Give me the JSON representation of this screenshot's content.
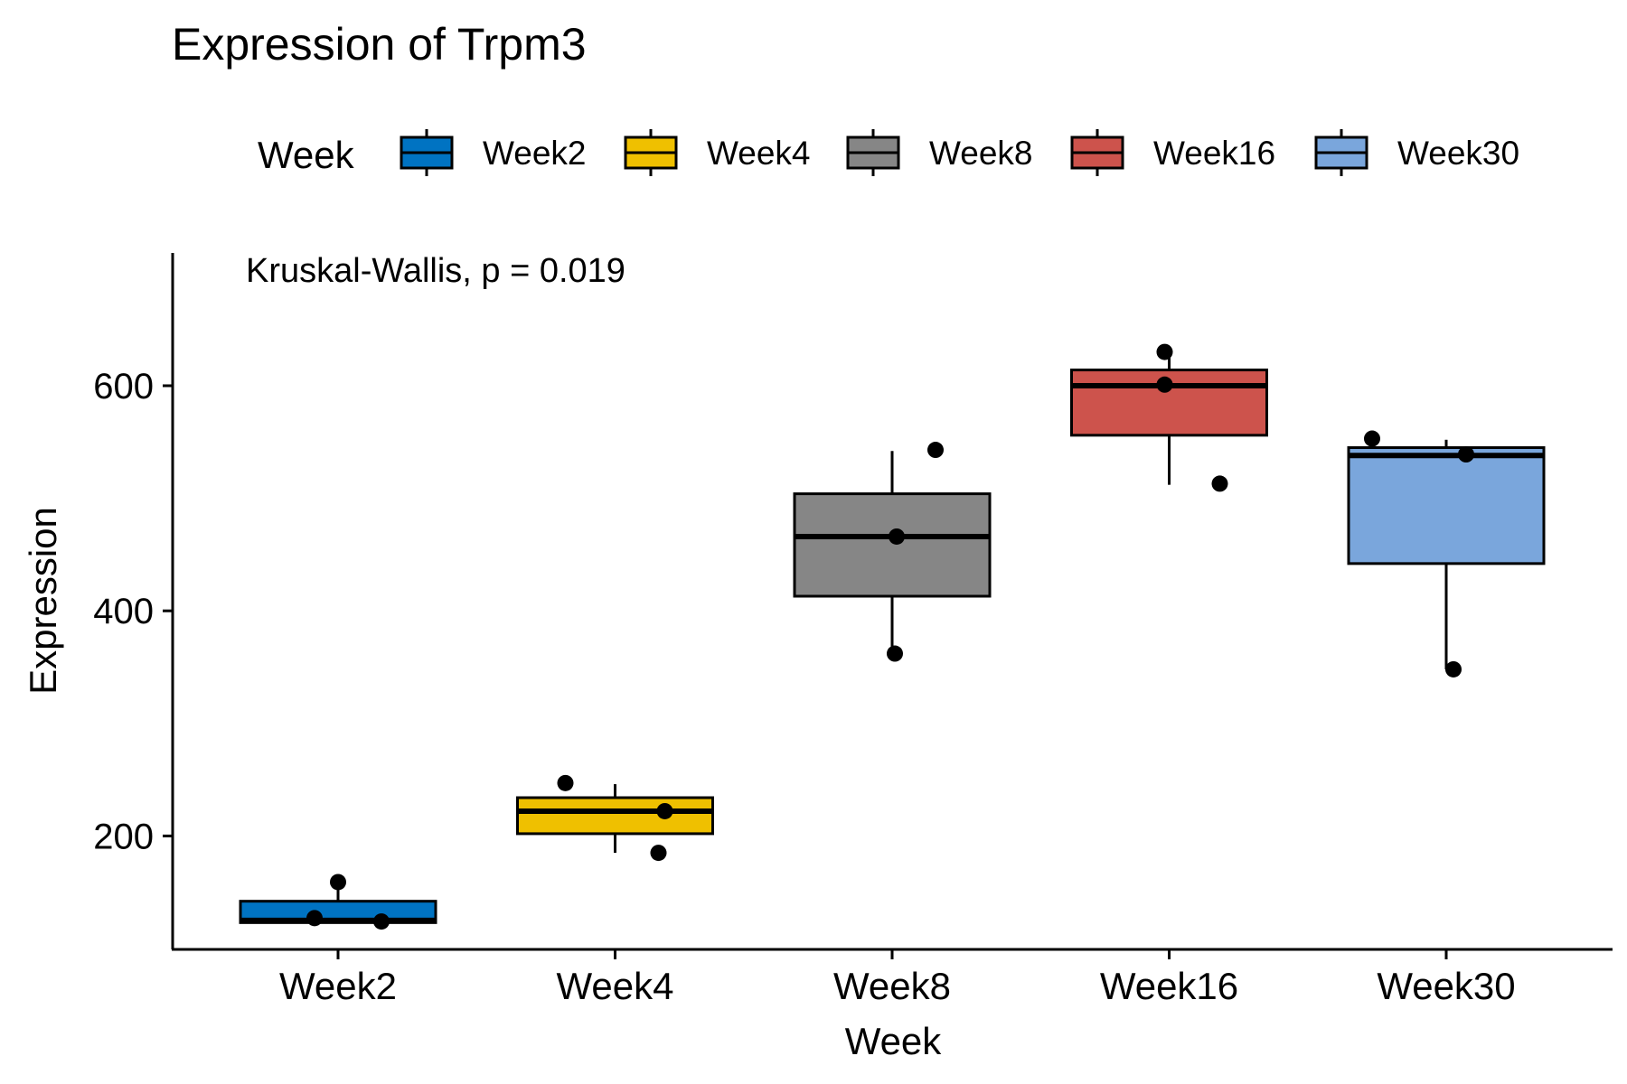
{
  "chart_data": {
    "type": "boxplot",
    "title": "Expression of Trpm3",
    "xlabel": "Week",
    "ylabel": "Expression",
    "annotation": "Kruskal-Wallis, p = 0.019",
    "categories": [
      "Week2",
      "Week4",
      "Week8",
      "Week16",
      "Week30"
    ],
    "ylim": [
      100,
      715
    ],
    "yticks": [
      200,
      400,
      600
    ],
    "grid": false,
    "legend": {
      "title": "Week",
      "position": "top",
      "entries": [
        "Week2",
        "Week4",
        "Week8",
        "Week16",
        "Week30"
      ]
    },
    "series": [
      {
        "name": "Week2",
        "color": "#0073C2",
        "min": 123,
        "q1": 123,
        "median": 125,
        "q3": 142,
        "max": 157,
        "points": [
          127,
          124,
          159
        ]
      },
      {
        "name": "Week4",
        "color": "#EFC000",
        "min": 185,
        "q1": 202,
        "median": 222,
        "q3": 234,
        "max": 246,
        "points": [
          247,
          222,
          185
        ]
      },
      {
        "name": "Week8",
        "color": "#868686",
        "min": 362,
        "q1": 413,
        "median": 466,
        "q3": 504,
        "max": 542,
        "points": [
          543,
          466,
          362
        ]
      },
      {
        "name": "Week16",
        "color": "#CD534C",
        "min": 512,
        "q1": 556,
        "median": 600,
        "q3": 614,
        "max": 629,
        "points": [
          630,
          601,
          513
        ]
      },
      {
        "name": "Week30",
        "color": "#7AA6DC",
        "min": 348,
        "q1": 442,
        "median": 538,
        "q3": 545,
        "max": 552,
        "points": [
          553,
          539,
          348
        ]
      }
    ]
  }
}
